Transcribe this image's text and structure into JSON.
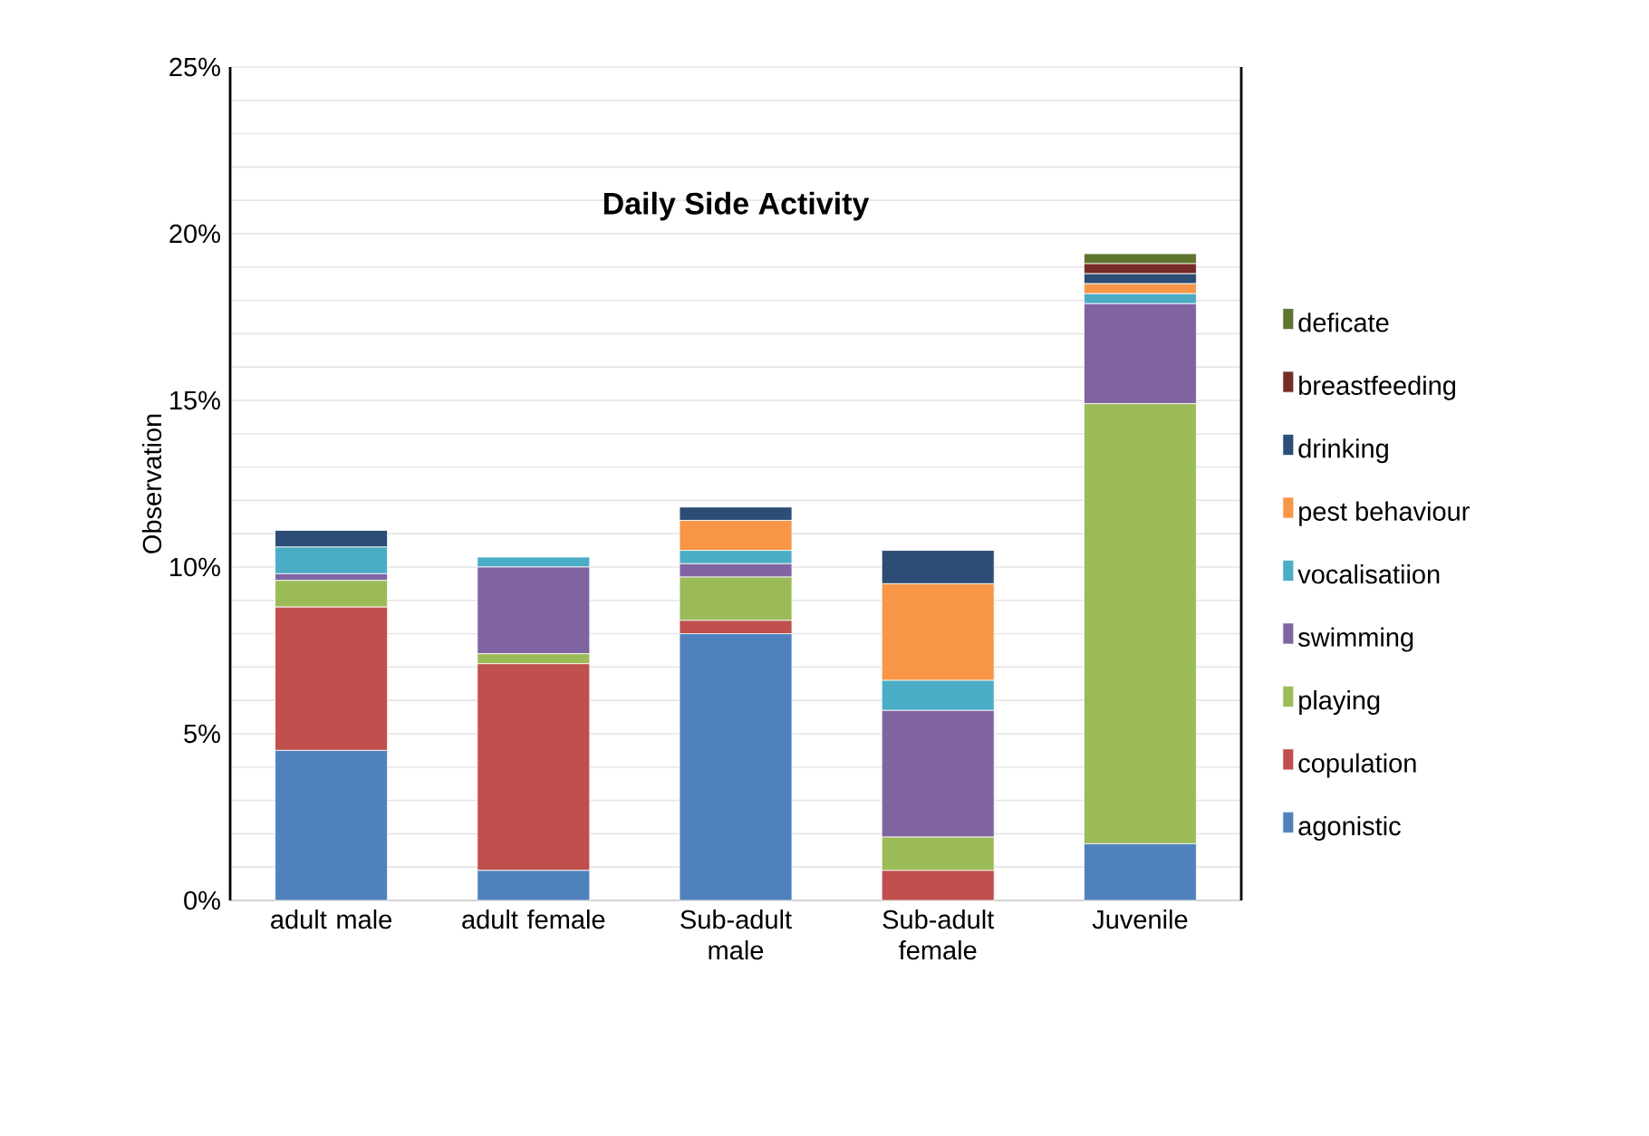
{
  "chart_data": {
    "type": "bar",
    "stacked": true,
    "title": "Daily Side Activity",
    "ylabel": "Observation",
    "categories": [
      "adult male",
      "adult female",
      "Sub-adult male",
      "Sub-adult female",
      "Juvenile"
    ],
    "series": [
      {
        "name": "agonistic",
        "color": "#4f81bd",
        "values": [
          4.5,
          0.9,
          8.0,
          0,
          1.7
        ]
      },
      {
        "name": "copulation",
        "color": "#c0504d",
        "values": [
          4.3,
          6.2,
          0.4,
          0.9,
          0
        ]
      },
      {
        "name": "playing",
        "color": "#9bbb59",
        "values": [
          0.8,
          0.3,
          1.3,
          1.0,
          13.2
        ]
      },
      {
        "name": "swimming",
        "color": "#8064a2",
        "values": [
          0.2,
          2.6,
          0.4,
          3.8,
          3.0
        ]
      },
      {
        "name": "vocalisatiion",
        "color": "#4bacc6",
        "values": [
          0.8,
          0.3,
          0.4,
          0.9,
          0.3
        ]
      },
      {
        "name": "pest behaviour",
        "color": "#f79646",
        "values": [
          0,
          0,
          0.9,
          2.9,
          0.3
        ]
      },
      {
        "name": "drinking",
        "color": "#2c4d75",
        "values": [
          0.5,
          0,
          0.4,
          1.0,
          0.3
        ]
      },
      {
        "name": "breastfeeding",
        "color": "#772c2a",
        "values": [
          0,
          0,
          0,
          0,
          0.3
        ]
      },
      {
        "name": "deficate",
        "color": "#5f7530",
        "values": [
          0,
          0,
          0,
          0,
          0.3
        ]
      }
    ],
    "ylim": [
      0,
      25
    ],
    "yticks": [
      {
        "value": 0,
        "label": "0%"
      },
      {
        "value": 1,
        "label": null
      },
      {
        "value": 2,
        "label": null
      },
      {
        "value": 3,
        "label": null
      },
      {
        "value": 4,
        "label": null
      },
      {
        "value": 5,
        "label": "5%"
      },
      {
        "value": 6,
        "label": null
      },
      {
        "value": 7,
        "label": null
      },
      {
        "value": 8,
        "label": null
      },
      {
        "value": 9,
        "label": null
      },
      {
        "value": 10,
        "label": "10%"
      },
      {
        "value": 11,
        "label": null
      },
      {
        "value": 12,
        "label": null
      },
      {
        "value": 13,
        "label": null
      },
      {
        "value": 14,
        "label": null
      },
      {
        "value": 15,
        "label": "15%"
      },
      {
        "value": 16,
        "label": null
      },
      {
        "value": 17,
        "label": null
      },
      {
        "value": 18,
        "label": null
      },
      {
        "value": 19,
        "label": null
      },
      {
        "value": 20,
        "label": "20%"
      },
      {
        "value": 21,
        "label": null
      },
      {
        "value": 22,
        "label": null
      },
      {
        "value": 23,
        "label": null
      },
      {
        "value": 24,
        "label": null
      },
      {
        "value": 25,
        "label": "25%"
      }
    ],
    "grid": "y",
    "legend": "right"
  }
}
